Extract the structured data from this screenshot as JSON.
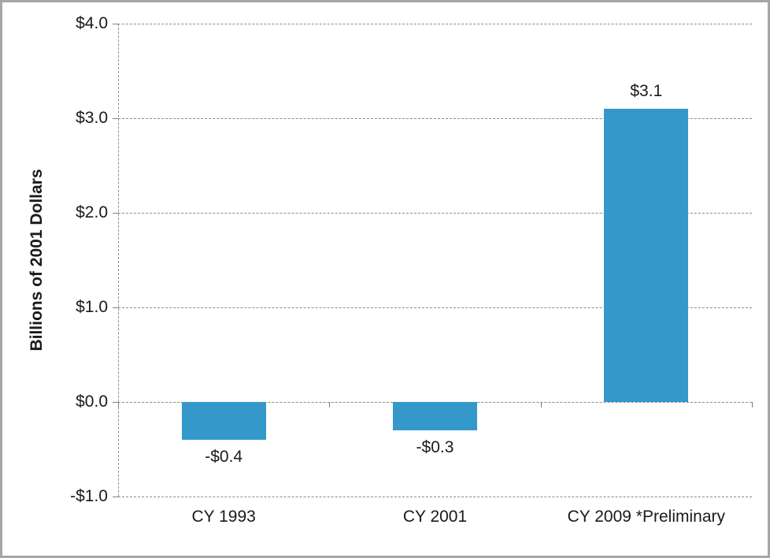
{
  "window": {
    "background": "#ffffff",
    "border_color": "#a6a6a6"
  },
  "chart_data": {
    "type": "bar",
    "categories": [
      "CY 1993",
      "CY 2001",
      "CY 2009 *Preliminary"
    ],
    "values": [
      -0.4,
      -0.3,
      3.1
    ],
    "data_labels": [
      "-$0.4",
      "-$0.3",
      "$3.1"
    ],
    "ylabel": "Billions of 2001 Dollars",
    "ylim": [
      -1.0,
      4.0
    ],
    "yticks": [
      {
        "value": 4.0,
        "label": "$4.0"
      },
      {
        "value": 3.0,
        "label": "$3.0"
      },
      {
        "value": 2.0,
        "label": "$2.0"
      },
      {
        "value": 1.0,
        "label": "$1.0"
      },
      {
        "value": 0.0,
        "label": "$0.0"
      },
      {
        "value": -1.0,
        "label": "-$1.0"
      }
    ],
    "axis_crosses_at": 0,
    "bar_color": "#3498cb",
    "gridline_color": "#8c8c8c",
    "grid": true,
    "legend": "none"
  }
}
